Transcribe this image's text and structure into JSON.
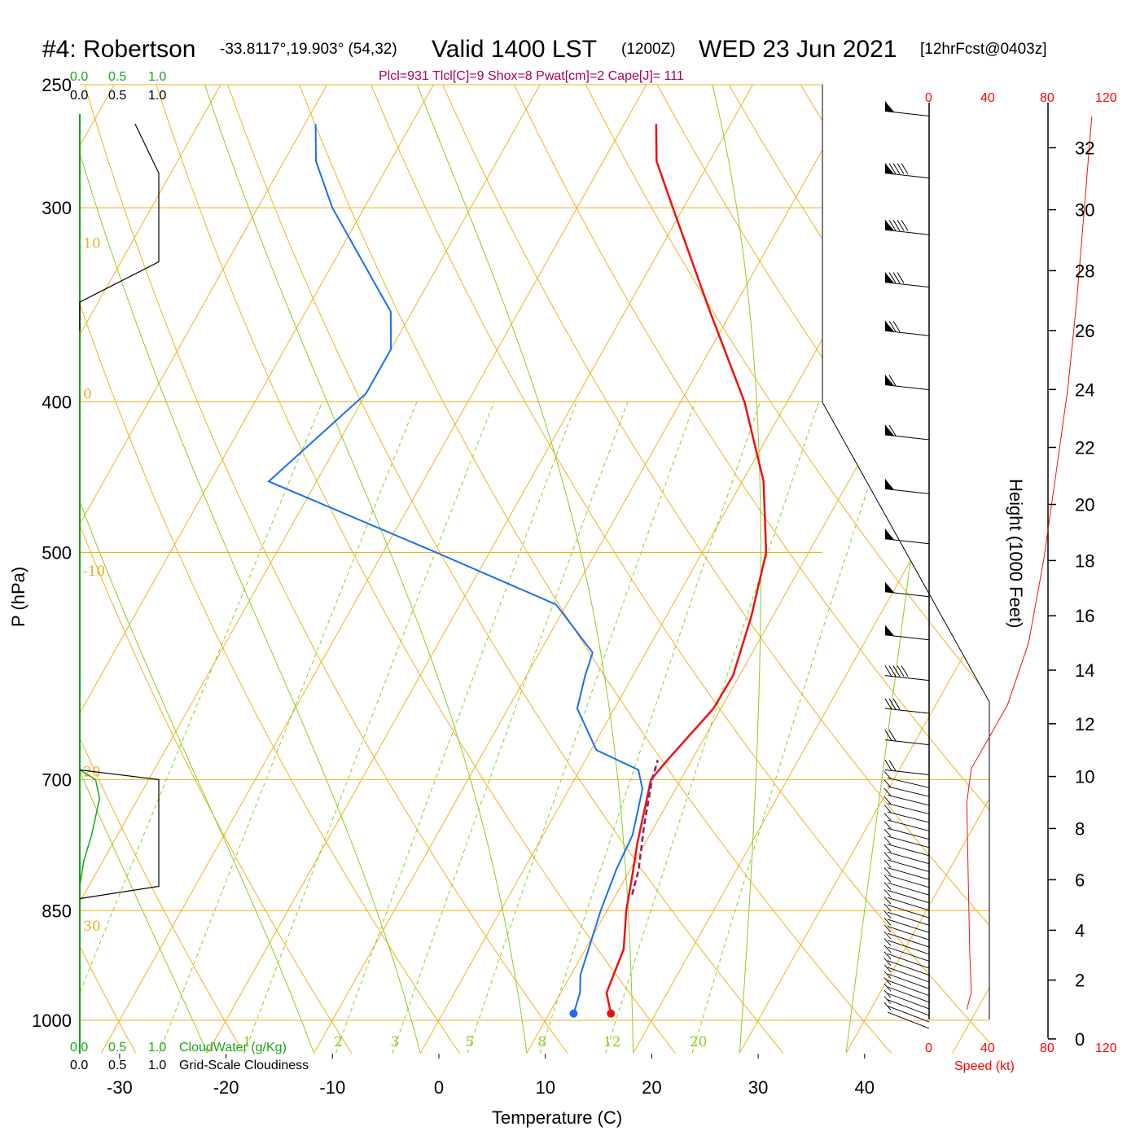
{
  "title": {
    "station": "#4: Robertson",
    "coords": "-33.8117°,19.903° (54,32)",
    "valid": "Valid 1400 LST",
    "zulu": "(1200Z)",
    "date": "WED 23 Jun 2021",
    "forecast": "[12hrFcst@0403z]"
  },
  "stats_line": "Plcl=931 Tlcl[C]=9 Shox=8 Pwat[cm]=2 Cape[J]= 111",
  "cloud_scale": {
    "green_ticks": [
      "0.0",
      "0.5",
      "1.0"
    ],
    "black_ticks": [
      "0.0",
      "0.5",
      "1.0"
    ],
    "cloudwater_label": "CloudWater (g/Kg)",
    "cloudiness_label": "Grid-Scale Cloudiness"
  },
  "wind_scale": {
    "ticks": [
      "0",
      "40",
      "80",
      "120"
    ],
    "speed_label": "Speed (kt)"
  },
  "axes": {
    "xlabel": "Temperature (C)",
    "ylabel": "P (hPa)",
    "height_label": "Height (1000 Feet)"
  },
  "chart_data": {
    "type": "skew-t",
    "x_ticks": [
      -30,
      -20,
      -10,
      0,
      10,
      20,
      30,
      40
    ],
    "pressure_ticks": [
      250,
      300,
      400,
      500,
      700,
      850,
      1000
    ],
    "height_ticks": [
      0,
      2,
      4,
      6,
      8,
      10,
      12,
      14,
      16,
      18,
      20,
      22,
      24,
      26,
      28,
      30,
      32
    ],
    "dry_adiabat_labels": [
      "-10",
      "0",
      "10",
      "20",
      "30"
    ],
    "dry_adiabat_labels_right": [
      "0",
      "10",
      "20",
      "30"
    ],
    "mixing_ratio_labels": [
      "1",
      "2",
      "3",
      "5",
      "8",
      "12",
      "20"
    ],
    "temperature_c": [
      {
        "p": 990,
        "t": 15.8
      },
      {
        "p": 960,
        "t": 14.3
      },
      {
        "p": 900,
        "t": 13.6
      },
      {
        "p": 850,
        "t": 11.8
      },
      {
        "p": 800,
        "t": 10.3
      },
      {
        "p": 770,
        "t": 9.3
      },
      {
        "p": 700,
        "t": 7.2
      },
      {
        "p": 680,
        "t": 7.7
      },
      {
        "p": 630,
        "t": 9.3
      },
      {
        "p": 600,
        "t": 9.4
      },
      {
        "p": 550,
        "t": 8.0
      },
      {
        "p": 500,
        "t": 6.0
      },
      {
        "p": 450,
        "t": 2.0
      },
      {
        "p": 400,
        "t": -4.0
      },
      {
        "p": 350,
        "t": -12.0
      },
      {
        "p": 300,
        "t": -21.0
      },
      {
        "p": 280,
        "t": -25.0
      },
      {
        "p": 265,
        "t": -27.0
      }
    ],
    "dewpoint_c": [
      {
        "p": 990,
        "t": 12.3
      },
      {
        "p": 960,
        "t": 11.8
      },
      {
        "p": 935,
        "t": 10.9
      },
      {
        "p": 900,
        "t": 10.3
      },
      {
        "p": 850,
        "t": 9.4
      },
      {
        "p": 800,
        "t": 8.7
      },
      {
        "p": 760,
        "t": 8.4
      },
      {
        "p": 710,
        "t": 6.9
      },
      {
        "p": 690,
        "t": 5.5
      },
      {
        "p": 670,
        "t": 0.5
      },
      {
        "p": 630,
        "t": -3.5
      },
      {
        "p": 600,
        "t": -4.5
      },
      {
        "p": 580,
        "t": -5.0
      },
      {
        "p": 540,
        "t": -11.0
      },
      {
        "p": 500,
        "t": -25.0
      },
      {
        "p": 450,
        "t": -44.5
      },
      {
        "p": 395,
        "t": -40.0
      },
      {
        "p": 370,
        "t": -40.0
      },
      {
        "p": 350,
        "t": -42.0
      },
      {
        "p": 300,
        "t": -53.0
      },
      {
        "p": 280,
        "t": -57.0
      },
      {
        "p": 265,
        "t": -59.0
      }
    ],
    "parcel_c": [
      {
        "p": 830,
        "t": 11.5
      },
      {
        "p": 800,
        "t": 10.8
      },
      {
        "p": 750,
        "t": 9.0
      },
      {
        "p": 700,
        "t": 7.3
      },
      {
        "p": 680,
        "t": 6.8
      }
    ],
    "surface": {
      "temperature": 15.8,
      "dewpoint": 12.3
    },
    "cloudwater": [
      {
        "p": 690,
        "v": 0.0
      },
      {
        "p": 700,
        "v": 0.2
      },
      {
        "p": 720,
        "v": 0.25
      },
      {
        "p": 760,
        "v": 0.15
      },
      {
        "p": 790,
        "v": 0.05
      },
      {
        "p": 820,
        "v": 0.0
      }
    ],
    "cloudiness_low": [
      {
        "p": 690,
        "v": 0.0
      },
      {
        "p": 700,
        "v": 1.0
      },
      {
        "p": 820,
        "v": 1.0
      },
      {
        "p": 835,
        "v": 0.0
      }
    ],
    "cloudiness_high": [
      {
        "p": 265,
        "v": 0.7
      },
      {
        "p": 285,
        "v": 1.0
      },
      {
        "p": 325,
        "v": 1.0
      },
      {
        "p": 345,
        "v": 0.0
      },
      {
        "p": 360,
        "v": 0.0
      }
    ],
    "wind_profile": [
      {
        "h": 0.8,
        "kt": 25
      },
      {
        "h": 1.5,
        "kt": 28
      },
      {
        "h": 3,
        "kt": 27
      },
      {
        "h": 6,
        "kt": 26
      },
      {
        "h": 9,
        "kt": 25
      },
      {
        "h": 10.3,
        "kt": 28
      },
      {
        "h": 11.5,
        "kt": 40
      },
      {
        "h": 12.7,
        "kt": 52
      },
      {
        "h": 15,
        "kt": 66
      },
      {
        "h": 18,
        "kt": 76
      },
      {
        "h": 21,
        "kt": 84
      },
      {
        "h": 24,
        "kt": 92
      },
      {
        "h": 27,
        "kt": 98
      },
      {
        "h": 30,
        "kt": 103
      },
      {
        "h": 33,
        "kt": 108
      }
    ],
    "wind_barbs": [
      {
        "p": 260,
        "flags": 1,
        "full": 1
      },
      {
        "p": 285,
        "flags": 1,
        "full": 5
      },
      {
        "p": 310,
        "flags": 1,
        "full": 5
      },
      {
        "p": 335,
        "flags": 1,
        "full": 4
      },
      {
        "p": 360,
        "flags": 1,
        "full": 3
      },
      {
        "p": 390,
        "flags": 1,
        "full": 2
      },
      {
        "p": 420,
        "flags": 1,
        "full": 2
      },
      {
        "p": 455,
        "flags": 1,
        "full": 1
      },
      {
        "p": 490,
        "flags": 1,
        "full": 1
      },
      {
        "p": 530,
        "flags": 1,
        "full": 0
      },
      {
        "p": 565,
        "flags": 1,
        "full": 0
      },
      {
        "p": 600,
        "flags": 0,
        "full": 5
      },
      {
        "p": 630,
        "flags": 0,
        "full": 3
      },
      {
        "p": 660,
        "flags": 0,
        "full": 2
      },
      {
        "p": 690,
        "flags": 0,
        "full": 2
      }
    ]
  }
}
